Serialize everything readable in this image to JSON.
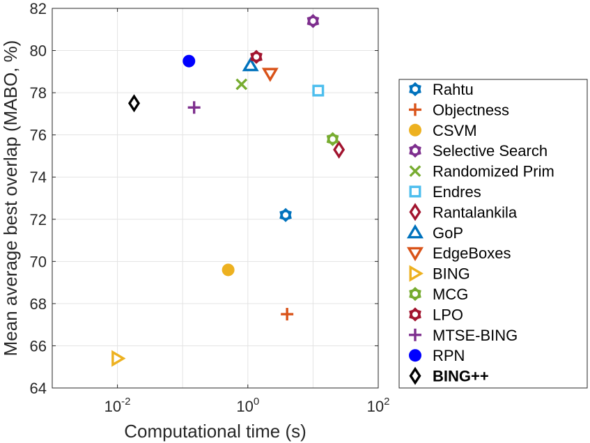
{
  "chart_data": {
    "type": "scatter",
    "title": "",
    "xlabel": "Computational time (s)",
    "ylabel": "Mean average best overlap (MABO, %)",
    "xscale": "log",
    "xlim": [
      0.001,
      100
    ],
    "ylim": [
      64,
      82
    ],
    "grid": true,
    "legend_position": "right",
    "x_ticks": [
      {
        "value": 0.01,
        "base": "10",
        "exp": "-2"
      },
      {
        "value": 1,
        "base": "10",
        "exp": "0"
      },
      {
        "value": 100,
        "base": "10",
        "exp": "2"
      }
    ],
    "y_ticks": [
      64,
      66,
      68,
      70,
      72,
      74,
      76,
      78,
      80,
      82
    ],
    "series": [
      {
        "name": "Rahtu",
        "marker": "hexagram",
        "color": "#0072BD",
        "x": 3.8,
        "y": 72.2,
        "bold": false
      },
      {
        "name": "Objectness",
        "marker": "plus",
        "color": "#D95319",
        "x": 4.0,
        "y": 67.5,
        "bold": false
      },
      {
        "name": "CSVM",
        "marker": "circle-filled",
        "color": "#EDB120",
        "x": 0.5,
        "y": 69.6,
        "bold": false
      },
      {
        "name": "Selective Search",
        "marker": "hexagram",
        "color": "#7E2F8E",
        "x": 10.0,
        "y": 81.4,
        "bold": false
      },
      {
        "name": "Randomized Prim",
        "marker": "x",
        "color": "#77AC30",
        "x": 0.8,
        "y": 78.4,
        "bold": false
      },
      {
        "name": "Endres",
        "marker": "square",
        "color": "#4DBEEE",
        "x": 12.0,
        "y": 78.1,
        "bold": false
      },
      {
        "name": "Rantalankila",
        "marker": "diamond",
        "color": "#A2142F",
        "x": 25.0,
        "y": 75.3,
        "bold": false
      },
      {
        "name": "GoP",
        "marker": "triangle-up",
        "color": "#0072BD",
        "x": 1.1,
        "y": 79.3,
        "bold": false
      },
      {
        "name": "EdgeBoxes",
        "marker": "triangle-down",
        "color": "#D95319",
        "x": 2.2,
        "y": 78.9,
        "bold": false
      },
      {
        "name": "BING",
        "marker": "triangle-right",
        "color": "#EDB120",
        "x": 0.01,
        "y": 65.4,
        "bold": false
      },
      {
        "name": "MCG",
        "marker": "hexagram",
        "color": "#77AC30",
        "x": 20.0,
        "y": 75.8,
        "bold": false
      },
      {
        "name": "LPO",
        "marker": "hexagram",
        "color": "#A2142F",
        "x": 1.35,
        "y": 79.7,
        "bold": false
      },
      {
        "name": "MTSE-BING",
        "marker": "plus",
        "color": "#7E2F8E",
        "x": 0.15,
        "y": 77.3,
        "bold": false
      },
      {
        "name": "RPN",
        "marker": "circle-filled",
        "color": "#0000FF",
        "x": 0.125,
        "y": 79.5,
        "bold": false
      },
      {
        "name": "BING++",
        "marker": "diamond",
        "color": "#000000",
        "x": 0.018,
        "y": 77.5,
        "bold": true
      }
    ]
  }
}
